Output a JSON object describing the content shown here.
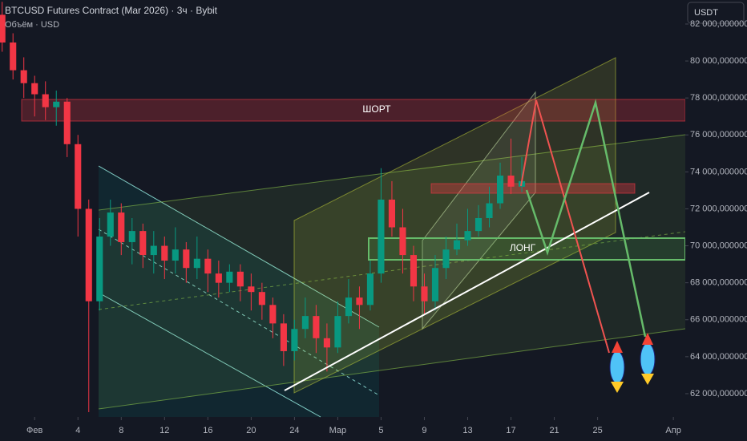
{
  "header": {
    "title": "BTCUSD Futures Contract (Mar 2026) · 3ч · Bybit",
    "subtitle": "Объём · USD",
    "currency_button": "USDT"
  },
  "chart_data": {
    "type": "candlestick",
    "annotations": [
      "ШОРТ",
      "ЛОНГ"
    ],
    "x": [
      -3,
      -2,
      -1,
      0,
      1,
      2,
      3,
      4,
      5,
      6,
      7,
      8,
      9,
      10,
      11,
      12,
      13,
      14,
      15,
      16,
      17,
      18,
      19,
      20,
      21,
      22,
      23,
      24,
      25,
      26,
      27,
      28,
      29,
      30,
      31,
      32,
      33,
      34,
      35,
      36,
      37,
      38,
      39,
      40,
      41,
      42,
      43,
      44,
      45
    ],
    "open": [
      82500,
      81000,
      79500,
      78800,
      78200,
      77500,
      77800,
      75500,
      72000,
      67000,
      70500,
      71800,
      70200,
      70800,
      69500,
      70000,
      69200,
      69800,
      68800,
      69300,
      68500,
      68000,
      68600,
      67800,
      67500,
      66800,
      65800,
      64300,
      65500,
      66200,
      65000,
      64500,
      66200,
      67200,
      66800,
      68500,
      72500,
      71000,
      69500,
      67800,
      67000,
      68800,
      69800,
      70300,
      70800,
      71500,
      72300,
      73800,
      73200
    ],
    "high": [
      83200,
      81500,
      80200,
      79200,
      78900,
      78400,
      78000,
      76000,
      72500,
      71500,
      72500,
      72300,
      71500,
      71200,
      70800,
      70500,
      71000,
      70200,
      70500,
      69800,
      69200,
      69000,
      69000,
      68500,
      68000,
      67200,
      66300,
      66000,
      67200,
      66800,
      65800,
      67000,
      68200,
      67800,
      69200,
      74200,
      73500,
      72000,
      70000,
      68500,
      69500,
      70500,
      71200,
      72000,
      72200,
      73200,
      74500,
      75800,
      74800
    ],
    "low": [
      80500,
      79000,
      78000,
      77000,
      76800,
      76500,
      74800,
      70500,
      61000,
      66500,
      70000,
      69500,
      69000,
      68800,
      68500,
      68200,
      68500,
      68000,
      68200,
      67500,
      67200,
      67500,
      67000,
      66500,
      66000,
      65000,
      63500,
      63800,
      65000,
      64200,
      63200,
      64200,
      65800,
      65500,
      66500,
      68000,
      70500,
      68500,
      67000,
      66300,
      66500,
      68200,
      69500,
      70000,
      70500,
      71000,
      72000,
      72800,
      72900
    ],
    "close": [
      81000,
      79500,
      78800,
      78200,
      77500,
      77800,
      75500,
      72000,
      67000,
      70500,
      71800,
      70200,
      70800,
      69500,
      70000,
      69200,
      69800,
      68800,
      69300,
      68500,
      68000,
      68600,
      67800,
      67500,
      66800,
      65800,
      64300,
      65500,
      66200,
      65000,
      64500,
      66200,
      67200,
      66800,
      68500,
      72500,
      71000,
      69500,
      67800,
      67000,
      68800,
      69800,
      70300,
      70800,
      71500,
      72300,
      73800,
      73200,
      73500
    ],
    "up_color": "#089981",
    "down_color": "#f23645",
    "xlim": [
      -3.2,
      60.1
    ],
    "ylim": [
      60740,
      83300
    ],
    "xticks": [
      {
        "value": 0,
        "label": "Фев"
      },
      4,
      8,
      12,
      16,
      20,
      24,
      {
        "value": 28,
        "label": "Мар"
      },
      {
        "value": 32,
        "label": "5"
      },
      {
        "value": 36,
        "label": "9"
      },
      {
        "value": 40,
        "label": "13"
      },
      {
        "value": 44,
        "label": "17"
      },
      {
        "value": 48,
        "label": "21"
      },
      {
        "value": 52,
        "label": "25"
      },
      {
        "value": 59,
        "label": "Апр"
      }
    ],
    "yticks": [
      {
        "value": 62000,
        "label": "62 000,000000"
      },
      {
        "value": 64000,
        "label": "64 000,000000"
      },
      {
        "value": 66000,
        "label": "66 000,000000"
      },
      {
        "value": 68000,
        "label": "68 000,000000"
      },
      {
        "value": 70000,
        "label": "70 000,000000"
      },
      {
        "value": 72000,
        "label": "72 000,000000"
      },
      {
        "value": 74000,
        "label": "74 000,000000"
      },
      {
        "value": 76000,
        "label": "76 000,000000"
      },
      {
        "value": 78000,
        "label": "78 000,000000"
      },
      {
        "value": 80000,
        "label": "80 000,000000"
      },
      {
        "value": 82000,
        "label": "82 000,000000"
      }
    ],
    "grid": false
  }
}
